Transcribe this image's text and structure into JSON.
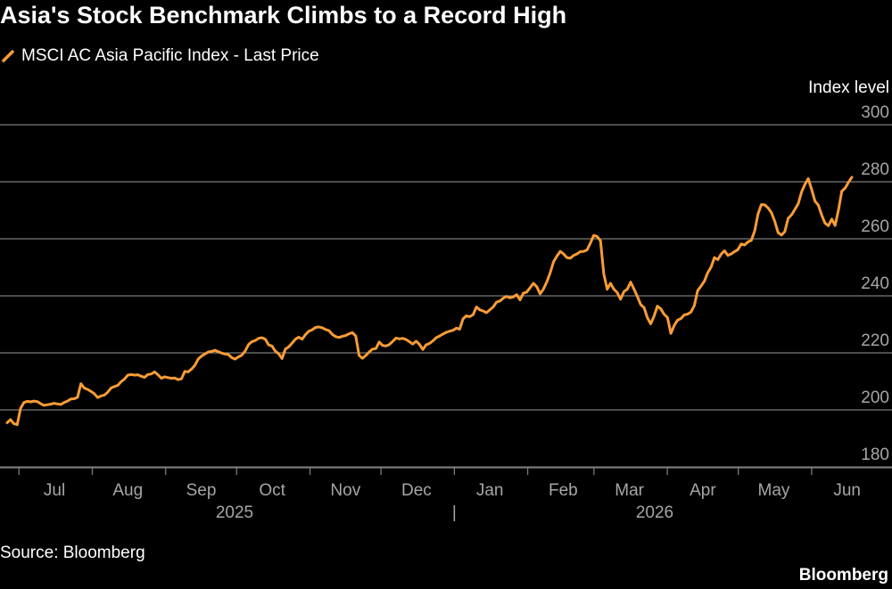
{
  "title": "Asia's Stock Benchmark Climbs to a Record High",
  "source": "Source: Bloomberg",
  "brand": "Bloomberg",
  "colors": {
    "background": "#000000",
    "line": "#f99c36",
    "grid": "#7a7a7a",
    "text": "#ffffff",
    "axis_text": "#a6a6a6"
  },
  "chart_data": {
    "type": "line",
    "series": [
      {
        "name": "MSCI AC Asia Pacific Index - Last Price",
        "values": [
          195.5,
          196.6,
          195.2,
          194.8,
          200.5,
          202.6,
          203,
          202.8,
          203.1,
          202.9,
          202.2,
          201.6,
          201.8,
          202,
          202.3,
          202.1,
          201.9,
          202.6,
          203.1,
          203.8,
          203.9,
          204.4,
          209.2,
          207.7,
          207.2,
          206.5,
          205.7,
          204.3,
          204.9,
          205.2,
          206.2,
          207.7,
          208.2,
          208.6,
          209.9,
          210.8,
          212.2,
          212.4,
          212.2,
          212.3,
          211.8,
          211.4,
          212.4,
          212.6,
          213.3,
          212.3,
          211.1,
          211.6,
          211.3,
          211.1,
          211.2,
          210.6,
          210.9,
          213.5,
          213.3,
          214.3,
          215.6,
          217.8,
          218.9,
          219.6,
          220.3,
          220.5,
          220.9,
          220.4,
          219.9,
          219.6,
          219.4,
          218.3,
          217.8,
          218.6,
          219.2,
          220.6,
          222.9,
          223.9,
          224.3,
          225.1,
          225.3,
          224.8,
          222.8,
          222.4,
          220.6,
          219.7,
          218,
          221.3,
          222.1,
          223.4,
          224.8,
          225.5,
          224.8,
          226.4,
          227.6,
          228.1,
          228.9,
          229.1,
          228.8,
          228.2,
          227.8,
          226.5,
          225.7,
          225.4,
          225.8,
          226.1,
          226.7,
          227.1,
          225.9,
          219.1,
          218.1,
          219.1,
          220.3,
          221.3,
          221.5,
          223.8,
          222.6,
          222.4,
          222.9,
          224,
          225.2,
          224.9,
          225.1,
          224.7,
          223.9,
          223.1,
          224.1,
          223,
          221.2,
          222.8,
          223.3,
          224.2,
          225.3,
          225.9,
          226.6,
          227.2,
          227.6,
          227.9,
          228.7,
          228.3,
          231.9,
          233,
          232.7,
          233.4,
          236.1,
          235.1,
          234.7,
          234.1,
          235.1,
          236.1,
          237.8,
          238.2,
          239.2,
          239.8,
          239.3,
          239.6,
          240.4,
          238.6,
          240.9,
          241.3,
          242.8,
          244.4,
          243.2,
          240.7,
          242.4,
          244.9,
          248.1,
          251.9,
          253.9,
          255.6,
          254.7,
          253.4,
          253.2,
          254.2,
          254.7,
          255.5,
          255.6,
          256.1,
          258.5,
          261.2,
          260.8,
          259.3,
          247.7,
          242.3,
          244.4,
          242.3,
          241.2,
          238.8,
          241.5,
          242.3,
          244.8,
          242.4,
          239.8,
          236.9,
          235.9,
          232.3,
          230.2,
          232.9,
          236.4,
          235.4,
          233.5,
          232.4,
          226.8,
          229.6,
          231.5,
          232,
          233.3,
          233.6,
          234.3,
          236.6,
          241.8,
          243.4,
          245.2,
          248.1,
          250.1,
          253.4,
          252.7,
          254.6,
          255.8,
          254.2,
          254.7,
          255.5,
          256.2,
          258.2,
          257.8,
          258.9,
          259.5,
          262.7,
          268.7,
          272,
          271.9,
          270.8,
          269.2,
          266.1,
          262.2,
          261.3,
          262.5,
          267.2,
          268.4,
          270.3,
          272.3,
          276.4,
          279.1,
          281.1,
          277.3,
          273.2,
          271.8,
          268.3,
          265.5,
          264.6,
          266.9,
          264.7,
          270.1,
          276.7,
          277.8,
          279.8,
          281.6
        ]
      }
    ],
    "x_start": "2025-06-26",
    "x_end": "2026-06-18",
    "x_ticks": [
      "Jul",
      "Aug",
      "Sep",
      "Oct",
      "Nov",
      "Dec",
      "Jan",
      "Feb",
      "Mar",
      "Apr",
      "May",
      "Jun"
    ],
    "year_labels": [
      "2025",
      "2026"
    ],
    "year_separator": "|",
    "ylim": [
      175,
      300
    ],
    "yticks": [
      180,
      200,
      220,
      240,
      260,
      280,
      300
    ],
    "ylabel": "Index level",
    "grid": true,
    "legend": "top-left"
  }
}
